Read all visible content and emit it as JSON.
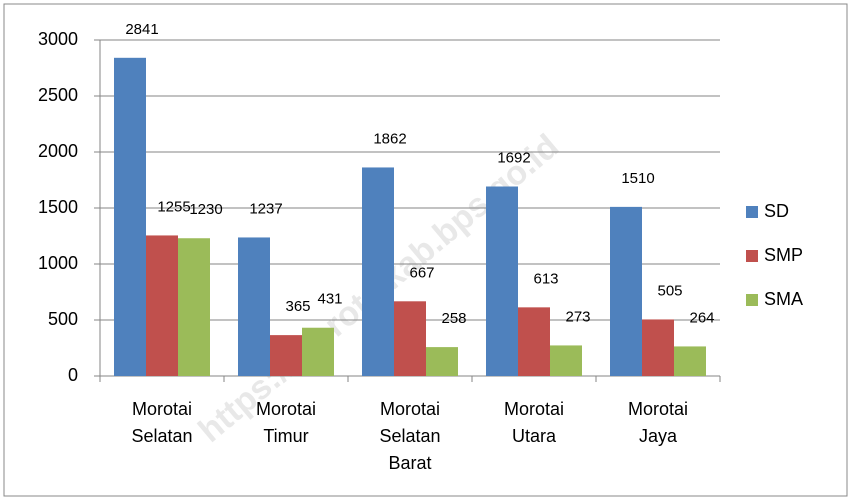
{
  "chart_data": {
    "type": "bar",
    "categories": [
      "Morotai Selatan",
      "Morotai Timur",
      "Morotai Selatan Barat",
      "Morotai Utara",
      "Morotai Jaya"
    ],
    "series": [
      {
        "name": "SD",
        "color": "#4f81bd",
        "values": [
          2841,
          1237,
          1862,
          1692,
          1510
        ]
      },
      {
        "name": "SMP",
        "color": "#c0504d",
        "values": [
          1255,
          365,
          667,
          613,
          505
        ]
      },
      {
        "name": "SMA",
        "color": "#9bbb59",
        "values": [
          1230,
          431,
          258,
          273,
          264
        ]
      }
    ],
    "ylim": [
      0,
      3000
    ],
    "yticks": [
      0,
      500,
      1000,
      1500,
      2000,
      2500,
      3000
    ],
    "grid": true,
    "legend": "right",
    "watermark": "https://morotaikab.bps.go.id"
  }
}
